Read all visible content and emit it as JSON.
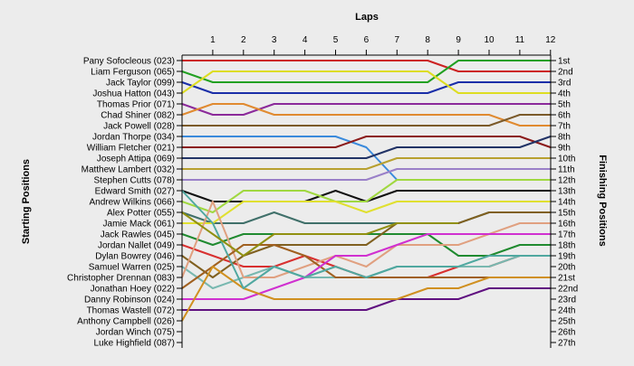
{
  "chart_data": {
    "type": "line",
    "title": "Laps",
    "ylabel_left": "Starting Positions",
    "ylabel_right": "Finishing Positions",
    "laps": [
      1,
      2,
      3,
      4,
      5,
      6,
      7,
      8,
      9,
      10,
      11,
      12
    ],
    "starting_labels": [
      "Pany Sofocleous (023)",
      "Liam Ferguson (065)",
      "Jack Taylor (099)",
      "Joshua Hatton (043)",
      "Thomas Prior (071)",
      "Chad Shiner (082)",
      "Jack Powell (028)",
      "Jordan Thorpe (034)",
      "William Fletcher (021)",
      "Joseph Attipa (069)",
      "Matthew Lambert (032)",
      "Stephen Cutts (078)",
      "Edward Smith (027)",
      "Andrew Wilkins (066)",
      "Alex Potter (055)",
      "Jamie Mack (061)",
      "Jack Rawles (045)",
      "Jordan Nallet (049)",
      "Dylan Bowrey (046)",
      "Samuel Warren (025)",
      "Christopher Drennan (083)",
      "Jonathan Hoey (022)",
      "Danny Robinson (024)",
      "Thomas Wastell (072)",
      "Anthony Campbell (026)",
      "Jordan Winch (075)",
      "Luke Highfield (087)"
    ],
    "finishing_labels": [
      "1st",
      "2nd",
      "3rd",
      "4th",
      "5th",
      "6th",
      "7th",
      "8th",
      "9th",
      "10th",
      "11th",
      "12th",
      "13th",
      "14th",
      "15th",
      "16th",
      "17th",
      "18th",
      "19th",
      "20th",
      "21st",
      "22nd",
      "23rd",
      "24th",
      "25th",
      "26th",
      "27th"
    ],
    "series": [
      {
        "color": "#cc2222",
        "positions": [
          1,
          1,
          1,
          1,
          1,
          1,
          1,
          1,
          1,
          2,
          2,
          2,
          2
        ]
      },
      {
        "color": "#22a022",
        "positions": [
          2,
          3,
          3,
          3,
          3,
          3,
          3,
          3,
          3,
          1,
          1,
          1,
          1
        ]
      },
      {
        "color": "#1a2ea8",
        "positions": [
          3,
          4,
          4,
          4,
          4,
          4,
          4,
          4,
          4,
          3,
          3,
          3,
          3
        ]
      },
      {
        "color": "#dddd22",
        "positions": [
          4,
          2,
          2,
          2,
          2,
          2,
          2,
          2,
          2,
          4,
          4,
          4,
          4
        ]
      },
      {
        "color": "#8b2a9a",
        "positions": [
          5,
          6,
          6,
          5,
          5,
          5,
          5,
          5,
          5,
          5,
          5,
          5,
          5
        ]
      },
      {
        "color": "#e08a30",
        "positions": [
          6,
          5,
          5,
          6,
          6,
          6,
          6,
          6,
          6,
          6,
          6,
          7,
          7
        ]
      },
      {
        "color": "#7b5a2a",
        "positions": [
          7,
          7,
          7,
          7,
          7,
          7,
          7,
          7,
          7,
          7,
          7,
          6,
          6
        ]
      },
      {
        "color": "#3a8adc",
        "positions": [
          8,
          8,
          8,
          8,
          8,
          8,
          9,
          12
        ]
      },
      {
        "color": "#8b1a1a",
        "positions": [
          9,
          9,
          9,
          9,
          9,
          9,
          8,
          8,
          8,
          8,
          8,
          8,
          9
        ]
      },
      {
        "color": "#223366",
        "positions": [
          10,
          10,
          10,
          10,
          10,
          10,
          10,
          9,
          9,
          9,
          9,
          9,
          8
        ]
      },
      {
        "color": "#b8a030",
        "positions": [
          11,
          11,
          11,
          11,
          11,
          11,
          11,
          10,
          10,
          10,
          10,
          10,
          10
        ]
      },
      {
        "color": "#9a80c8",
        "positions": [
          12,
          12,
          12,
          12,
          12,
          12,
          12,
          11,
          11,
          11,
          11,
          11,
          11
        ]
      },
      {
        "color": "#101010",
        "positions": [
          13,
          14,
          14,
          14,
          14,
          13,
          14,
          13,
          13,
          13,
          13,
          13,
          13
        ]
      },
      {
        "color": "#a0d840",
        "positions": [
          14,
          15,
          13,
          13,
          13,
          14,
          14,
          12,
          12,
          12,
          12,
          12,
          12
        ]
      },
      {
        "color": "#40706a",
        "positions": [
          15,
          16,
          16,
          15,
          16,
          16,
          16,
          16,
          16,
          16,
          15,
          15,
          15
        ]
      },
      {
        "color": "#e0e030",
        "positions": [
          16,
          16,
          14,
          14,
          14,
          14,
          15,
          14,
          14,
          14,
          14,
          14,
          14
        ]
      },
      {
        "color": "#208a30",
        "positions": [
          17,
          18,
          17,
          17,
          17,
          17,
          17,
          17,
          17,
          19,
          19,
          18,
          18
        ]
      },
      {
        "color": "#d83030",
        "positions": [
          18,
          19,
          20,
          20,
          19,
          20,
          21,
          21,
          21,
          20,
          20,
          19,
          19
        ]
      },
      {
        "color": "#806020",
        "positions": [
          19,
          21,
          19,
          18,
          18,
          18,
          18,
          16,
          16,
          16,
          15,
          15,
          15
        ]
      },
      {
        "color": "#78b8b0",
        "positions": [
          20,
          22,
          21,
          20,
          21,
          21,
          21,
          20,
          20,
          20,
          20,
          19,
          19
        ]
      },
      {
        "color": "#e0a080",
        "positions": [
          21,
          14,
          21,
          21,
          20,
          19,
          20,
          18,
          18,
          18,
          17,
          16,
          16
        ]
      },
      {
        "color": "#a06020",
        "positions": [
          22,
          20,
          18,
          18,
          19,
          21,
          21,
          21,
          21,
          21,
          21,
          21,
          21
        ]
      },
      {
        "color": "#d030d0",
        "positions": [
          23,
          23,
          23,
          22,
          21,
          19,
          19,
          18,
          17,
          17,
          17,
          17,
          17
        ]
      },
      {
        "color": "#601080",
        "positions": [
          24,
          24,
          24,
          24,
          24,
          24,
          24,
          23,
          23,
          23,
          22,
          22,
          22
        ]
      },
      {
        "color": "#d09020",
        "positions": [
          25,
          20,
          22,
          23,
          23,
          23,
          23,
          23,
          22,
          22,
          21,
          21,
          21
        ]
      },
      {
        "color": "#50a8a0",
        "positions": [
          13,
          16,
          22,
          20,
          21,
          20,
          21,
          20,
          20,
          20,
          19,
          19,
          19
        ]
      },
      {
        "color": "#909010",
        "positions": [
          15,
          17,
          19,
          17,
          17,
          17,
          17,
          16,
          16,
          16
        ]
      }
    ]
  }
}
